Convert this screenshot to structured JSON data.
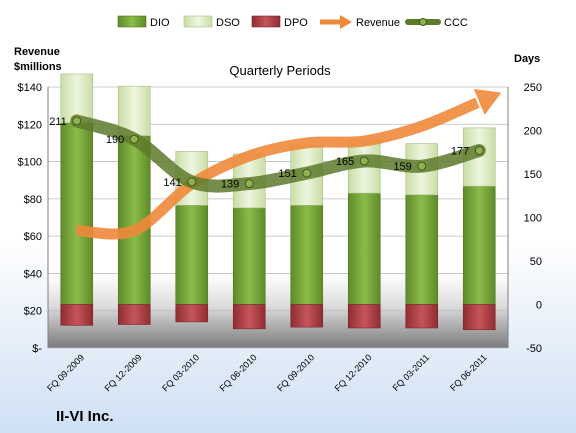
{
  "chart_data": {
    "type": "bar",
    "title": "Quarterly Periods",
    "company": "II-VI Inc.",
    "categories": [
      "FQ 09-2009",
      "FQ 12-2009",
      "FQ 03-2010",
      "FQ 06-2010",
      "FQ 09-2010",
      "FQ 12-2010",
      "FQ 03-2011",
      "FQ 06-2011"
    ],
    "left_axis": {
      "label_line1": "Revenue",
      "label_line2": "$millions",
      "ylim": [
        0,
        140
      ],
      "ticks": [
        "$-",
        "$20",
        "$40",
        "$60",
        "$80",
        "$100",
        "$120",
        "$140"
      ]
    },
    "right_axis": {
      "label": "Days",
      "ylim": [
        -50,
        250
      ],
      "ticks": [
        "-50",
        "0",
        "50",
        "100",
        "150",
        "200",
        "250"
      ]
    },
    "legend": [
      "DIO",
      "DSO",
      "DPO",
      "Revenue",
      "CCC"
    ],
    "legend_position": "top",
    "series": [
      {
        "name": "DIO",
        "axis": "right",
        "values": [
          209,
          194,
          114,
          111,
          114,
          128,
          126,
          136
        ],
        "color": "#7aa53c"
      },
      {
        "name": "DSO",
        "axis": "right",
        "values": [
          56,
          57,
          62,
          62,
          69,
          61,
          59,
          67
        ],
        "color": "#dcebc0"
      },
      {
        "name": "DPO",
        "axis": "right",
        "values": [
          -24,
          -23,
          -20,
          -28,
          -26,
          -27,
          -27,
          -29
        ],
        "color": "#b24247"
      },
      {
        "name": "Revenue",
        "axis": "left",
        "values": [
          63,
          63,
          88,
          103,
          110,
          111,
          119,
          132
        ],
        "color": "#f0883a"
      },
      {
        "name": "CCC",
        "axis": "right",
        "values": [
          211,
          190,
          141,
          139,
          151,
          165,
          159,
          177
        ],
        "color": "#5d7a2c"
      }
    ],
    "ccc_labels": [
      "211",
      "190",
      "141",
      "139",
      "151",
      "165",
      "159",
      "177"
    ],
    "grid": true
  }
}
